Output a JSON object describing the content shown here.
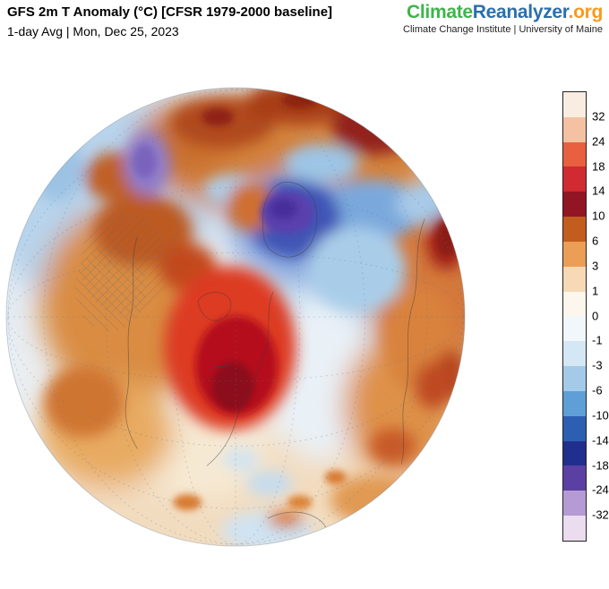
{
  "header": {
    "title": "GFS 2m T Anomaly (°C) [CFSR 1979-2000 baseline]",
    "subtitle": "1-day Avg | Mon, Dec 25, 2023"
  },
  "logo": {
    "climate": "Climate",
    "reanalyzer": "Reanalyzer",
    "org": ".org",
    "tagline": "Climate Change Institute | University of Maine",
    "colors": {
      "climate": "#3db54a",
      "reanalyzer": "#2a6fad",
      "org": "#f89a1c"
    }
  },
  "colorbar": {
    "title": "",
    "unit": "°C",
    "tick_labels": [
      "32",
      "24",
      "18",
      "14",
      "10",
      "6",
      "3",
      "1",
      "0",
      "-1",
      "-3",
      "-6",
      "-10",
      "-14",
      "-18",
      "-24",
      "-32"
    ],
    "segment_colors": [
      "#f9ede1",
      "#f4c2a2",
      "#e8603f",
      "#cf2b31",
      "#921523",
      "#c25c1f",
      "#eb9e55",
      "#f8d9b5",
      "#fdf6ec",
      "#f2f7fb",
      "#d4e7f4",
      "#a3cbe9",
      "#5e9fd8",
      "#2c5fb2",
      "#202e8e",
      "#5c3fa3",
      "#b49bd3",
      "#ecdcef"
    ]
  }
}
